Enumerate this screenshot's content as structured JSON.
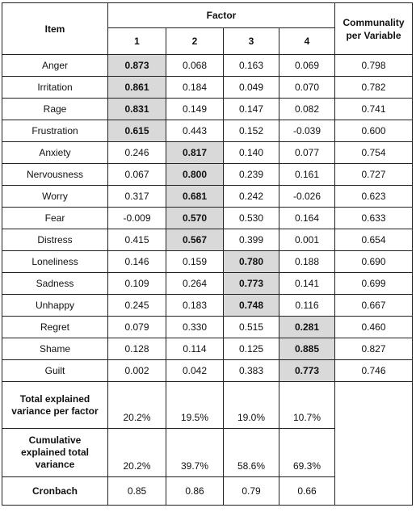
{
  "header": {
    "item": "Item",
    "factor": "Factor",
    "factors": [
      "1",
      "2",
      "3",
      "4"
    ],
    "communality": "Communality per Variable"
  },
  "rows": [
    {
      "item": "Anger",
      "loadings": [
        "0.873",
        "0.068",
        "0.163",
        "0.069"
      ],
      "communality": "0.798",
      "highlight": 0
    },
    {
      "item": "Irritation",
      "loadings": [
        "0.861",
        "0.184",
        "0.049",
        "0.070"
      ],
      "communality": "0.782",
      "highlight": 0
    },
    {
      "item": "Rage",
      "loadings": [
        "0.831",
        "0.149",
        "0.147",
        "0.082"
      ],
      "communality": "0.741",
      "highlight": 0
    },
    {
      "item": "Frustration",
      "loadings": [
        "0.615",
        "0.443",
        "0.152",
        "-0.039"
      ],
      "communality": "0.600",
      "highlight": 0
    },
    {
      "item": "Anxiety",
      "loadings": [
        "0.246",
        "0.817",
        "0.140",
        "0.077"
      ],
      "communality": "0.754",
      "highlight": 1
    },
    {
      "item": "Nervousness",
      "loadings": [
        "0.067",
        "0.800",
        "0.239",
        "0.161"
      ],
      "communality": "0.727",
      "highlight": 1
    },
    {
      "item": "Worry",
      "loadings": [
        "0.317",
        "0.681",
        "0.242",
        "-0.026"
      ],
      "communality": "0.623",
      "highlight": 1
    },
    {
      "item": "Fear",
      "loadings": [
        "-0.009",
        "0.570",
        "0.530",
        "0.164"
      ],
      "communality": "0.633",
      "highlight": 1
    },
    {
      "item": "Distress",
      "loadings": [
        "0.415",
        "0.567",
        "0.399",
        "0.001"
      ],
      "communality": "0.654",
      "highlight": 1
    },
    {
      "item": "Loneliness",
      "loadings": [
        "0.146",
        "0.159",
        "0.780",
        "0.188"
      ],
      "communality": "0.690",
      "highlight": 2
    },
    {
      "item": "Sadness",
      "loadings": [
        "0.109",
        "0.264",
        "0.773",
        "0.141"
      ],
      "communality": "0.699",
      "highlight": 2
    },
    {
      "item": "Unhappy",
      "loadings": [
        "0.245",
        "0.183",
        "0.748",
        "0.116"
      ],
      "communality": "0.667",
      "highlight": 2
    },
    {
      "item": "Regret",
      "loadings": [
        "0.079",
        "0.330",
        "0.515",
        "0.281"
      ],
      "communality": "0.460",
      "highlight": 3
    },
    {
      "item": "Shame",
      "loadings": [
        "0.128",
        "0.114",
        "0.125",
        "0.885"
      ],
      "communality": "0.827",
      "highlight": 3
    },
    {
      "item": "Guilt",
      "loadings": [
        "0.002",
        "0.042",
        "0.383",
        "0.773"
      ],
      "communality": "0.746",
      "highlight": 3
    }
  ],
  "summary": [
    {
      "label": "Total explained variance per factor",
      "values": [
        "20.2%",
        "19.5%",
        "19.0%",
        "10.7%"
      ]
    },
    {
      "label": "Cumulative explained total variance",
      "values": [
        "20.2%",
        "39.7%",
        "58.6%",
        "69.3%"
      ]
    },
    {
      "label": "Cronbach",
      "values": [
        "0.85",
        "0.86",
        "0.79",
        "0.66"
      ]
    }
  ]
}
